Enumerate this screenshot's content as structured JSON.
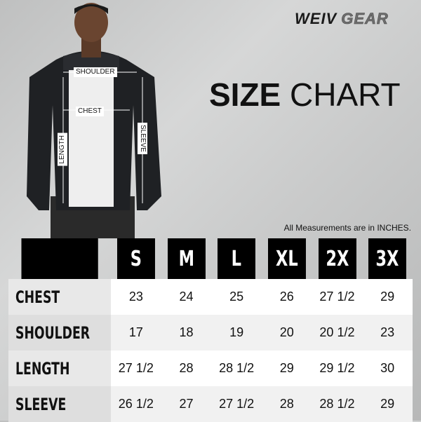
{
  "brand": {
    "part1": "WEIV",
    "part2": "GEAR"
  },
  "title": {
    "bold": "SIZE",
    "light": "CHART"
  },
  "note": "All Measurements are in INCHES.",
  "figure_labels": {
    "shoulder": "SHOULDER",
    "chest": "CHEST",
    "length": "LENGTH",
    "sleeve": "SLEEVE"
  },
  "table": {
    "sizes": [
      "S",
      "M",
      "L",
      "XL",
      "2X",
      "3X"
    ],
    "rows": [
      {
        "label": "CHEST",
        "values": [
          "23",
          "24",
          "25",
          "26",
          "27 1/2",
          "29"
        ]
      },
      {
        "label": "SHOULDER",
        "values": [
          "17",
          "18",
          "19",
          "20",
          "20 1/2",
          "23"
        ]
      },
      {
        "label": "LENGTH",
        "values": [
          "27 1/2",
          "28",
          "28 1/2",
          "29",
          "29 1/2",
          "30"
        ]
      },
      {
        "label": "SLEEVE",
        "values": [
          "26 1/2",
          "27",
          "27 1/2",
          "28",
          "28 1/2",
          "29"
        ]
      }
    ]
  }
}
